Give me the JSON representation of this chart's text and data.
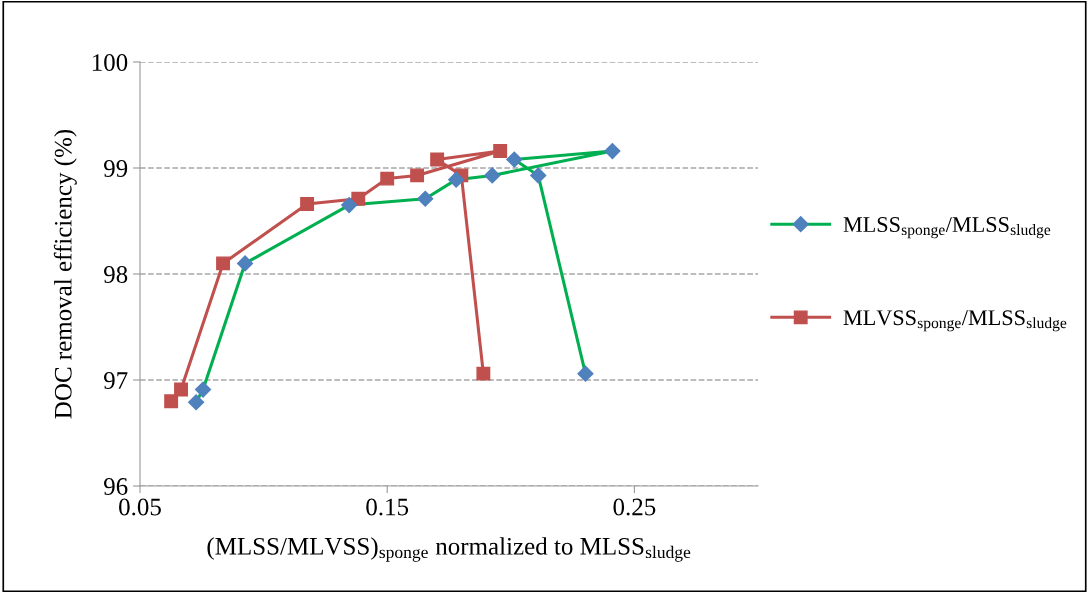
{
  "chart_data": {
    "type": "line",
    "xlabel": "(MLSS/MLVSS)$_{sponge}$ normalized to MLSS$_{sludge}$",
    "ylabel": "DOC removal efficiency (%)",
    "xlim": [
      0.05,
      0.3
    ],
    "xticks": [
      0.05,
      0.15,
      0.25
    ],
    "ylim": [
      96,
      100
    ],
    "yticks": [
      96,
      97,
      98,
      99,
      100
    ],
    "grid": "y",
    "legend": "right",
    "line_style": "solid",
    "series": [
      {
        "name": "MLSS$_{sponge}$/MLSS$_{sludge}$",
        "color": "#00b050",
        "marker": "diamond",
        "colors": [
          "#4f81bd",
          "#4f81bd",
          "#4f81bd",
          "#4f81bd",
          "#4f81bd",
          "#4f81bd",
          "#4f81bd",
          "#4f81bd",
          "#4f81bd",
          "#4f81bd",
          "#4f81bd"
        ],
        "x": [
          0.0727,
          0.0755,
          0.0925,
          0.1346,
          0.1654,
          0.1779,
          0.1925,
          0.2411,
          0.2014,
          0.2111,
          0.2302
        ],
        "values": [
          96.79,
          96.91,
          98.1,
          98.65,
          98.71,
          98.89,
          98.93,
          99.16,
          99.08,
          98.93,
          97.06
        ]
      },
      {
        "name": "MLVSS$_{sponge}$/MLSS$_{sludge}$",
        "color": "#c0504d",
        "marker": "square",
        "colors": [
          "#c0504d",
          "#c0504d",
          "#c0504d",
          "#c0504d",
          "#c0504d",
          "#c0504d",
          "#c0504d",
          "#c0504d",
          "#c0504d",
          "#c0504d",
          "#c0504d"
        ],
        "x": [
          0.0626,
          0.0666,
          0.0836,
          0.1176,
          0.1383,
          0.15,
          0.1621,
          0.1957,
          0.1702,
          0.18,
          0.1889
        ],
        "values": [
          96.8,
          96.91,
          98.1,
          98.66,
          98.71,
          98.9,
          98.93,
          99.16,
          99.08,
          98.93,
          97.06
        ]
      }
    ]
  }
}
